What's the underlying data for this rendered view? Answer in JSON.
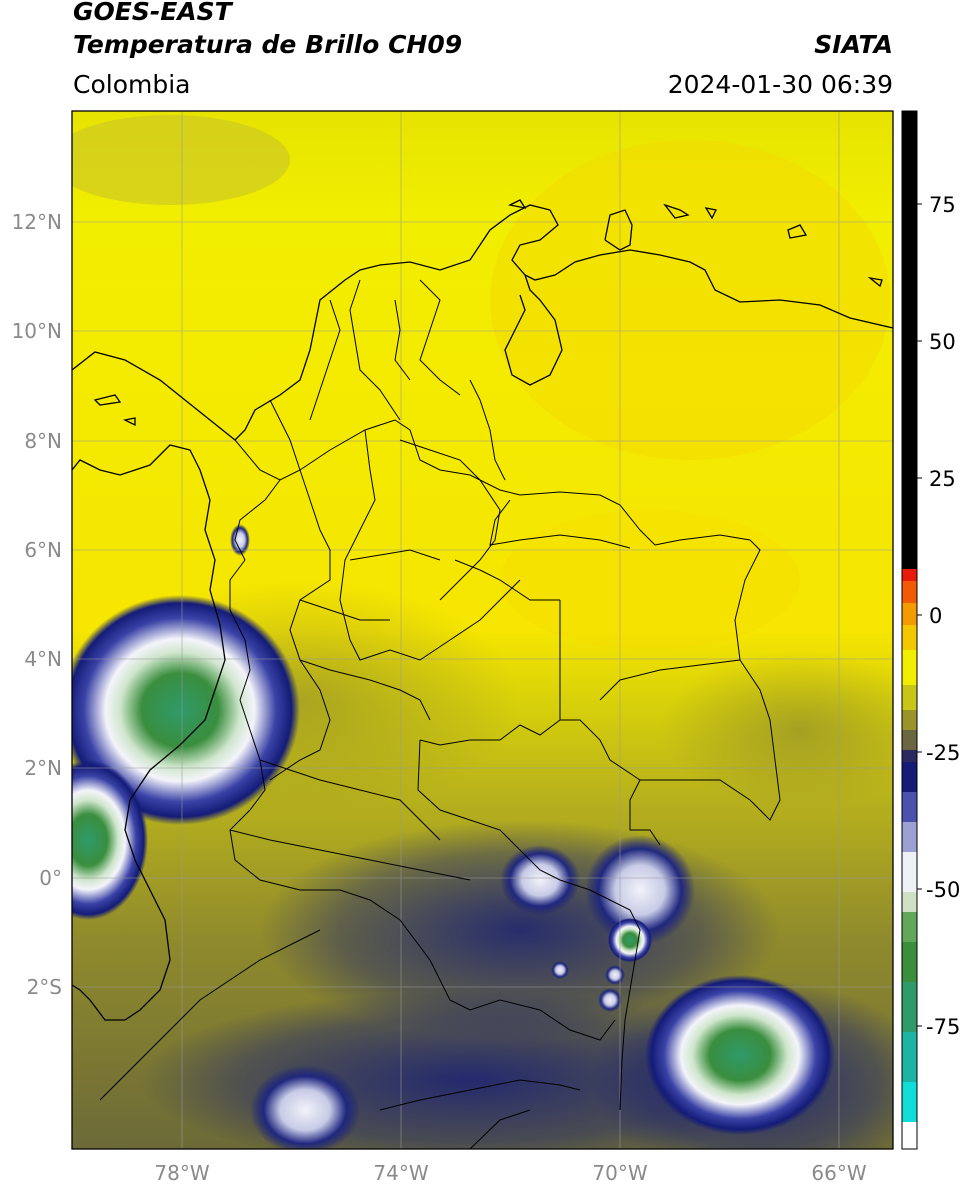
{
  "header": {
    "satellite": "GOES-EAST",
    "product": "Temperatura de Brillo CH09",
    "brand": "SIATA",
    "region": "Colombia",
    "timestamp": "2024-01-30 06:39"
  },
  "map": {
    "lat_ticks": [
      "12°N",
      "10°N",
      "8°N",
      "6°N",
      "4°N",
      "2°N",
      "0°",
      "2°S"
    ],
    "lon_ticks": [
      "78°W",
      "74°W",
      "70°W",
      "66°W"
    ]
  },
  "colorbar": {
    "ticks": [
      "75",
      "50",
      "25",
      "0",
      "-25",
      "-50",
      "-75"
    ]
  },
  "colors": {
    "warm_yellow": "#f2ee00",
    "olive": "#9a9428",
    "navy": "#141c78",
    "cloud_white": "#eef0f6",
    "cloud_green": "#3a8e3e"
  }
}
